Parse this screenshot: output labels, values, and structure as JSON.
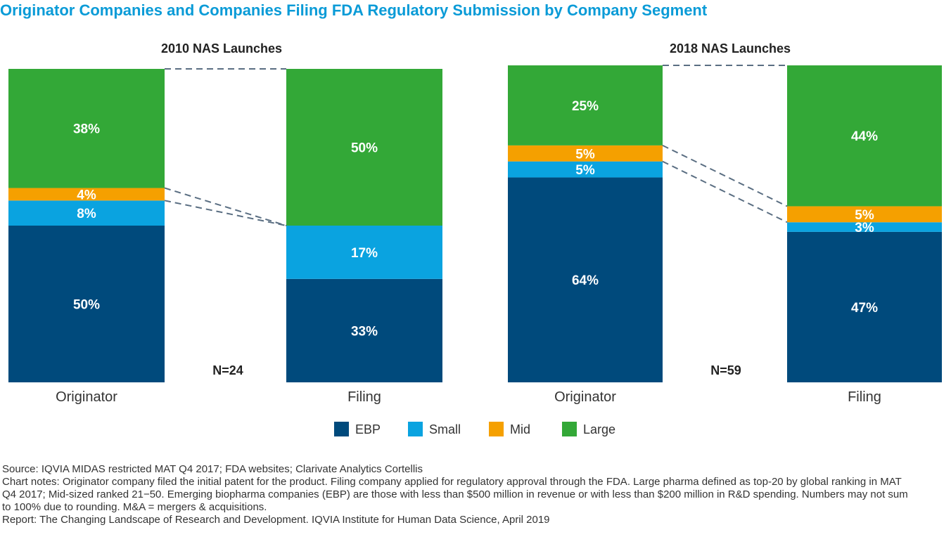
{
  "title": "Originator Companies and Companies Filing FDA Regulatory Submission by Company Segment",
  "colors": {
    "EBP": "#004a7c",
    "Small": "#0aa3e0",
    "Mid": "#f5a000",
    "Large": "#33a837",
    "connector": "#5a6e82"
  },
  "chart_data": {
    "type": "bar",
    "stacked": true,
    "unit": "%",
    "legend": [
      "EBP",
      "Small",
      "Mid",
      "Large"
    ],
    "panels": [
      {
        "title": "2010 NAS Launches",
        "n_label": "N=24",
        "categories": [
          "Originator",
          "Filing"
        ],
        "series": [
          {
            "name": "EBP",
            "values": [
              50,
              33
            ]
          },
          {
            "name": "Small",
            "values": [
              8,
              17
            ]
          },
          {
            "name": "Mid",
            "values": [
              4,
              0
            ]
          },
          {
            "name": "Large",
            "values": [
              38,
              50
            ]
          }
        ]
      },
      {
        "title": "2018 NAS Launches",
        "n_label": "N=59",
        "categories": [
          "Originator",
          "Filing"
        ],
        "series": [
          {
            "name": "EBP",
            "values": [
              64,
              47
            ]
          },
          {
            "name": "Small",
            "values": [
              5,
              3
            ]
          },
          {
            "name": "Mid",
            "values": [
              5,
              5
            ]
          },
          {
            "name": "Large",
            "values": [
              25,
              44
            ]
          }
        ]
      }
    ]
  },
  "notes": {
    "source": "Source: IQVIA MIDAS restricted MAT Q4 2017; FDA websites; Clarivate Analytics Cortellis",
    "chart_notes": "Chart notes: Originator company filed the initial patent for the product. Filing company applied for regulatory approval through the FDA. Large pharma defined as top-20 by global ranking in MAT Q4 2017; Mid-sized ranked 21−50. Emerging biopharma companies (EBP) are those with less than $500 million in revenue or with less than $200 million in R&D spending. Numbers may not sum to 100% due to rounding. M&A = mergers & acquisitions.",
    "report": "Report: The Changing Landscape of Research and Development. IQVIA Institute for Human Data Science, April 2019"
  }
}
